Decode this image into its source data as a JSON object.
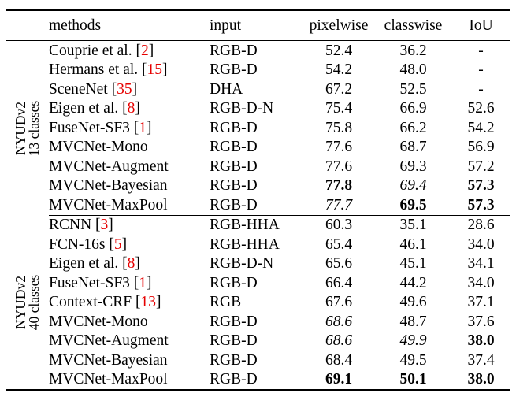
{
  "header": {
    "methods": "methods",
    "input": "input",
    "pixelwise": "pixelwise",
    "classwise": "classwise",
    "iou": "IoU"
  },
  "groups": [
    {
      "label": [
        "NYUDv2",
        "13 classes"
      ],
      "rows": [
        {
          "method": "Couprie et al.",
          "cite": "2",
          "input": "RGB-D",
          "cells": [
            {
              "v": "52.4"
            },
            {
              "v": "36.2"
            },
            {
              "v": "-"
            }
          ]
        },
        {
          "method": "Hermans et al.",
          "cite": "15",
          "input": "RGB-D",
          "cells": [
            {
              "v": "54.2"
            },
            {
              "v": "48.0"
            },
            {
              "v": "-"
            }
          ]
        },
        {
          "method": "SceneNet",
          "cite": "35",
          "input": "DHA",
          "cells": [
            {
              "v": "67.2"
            },
            {
              "v": "52.5"
            },
            {
              "v": "-"
            }
          ]
        },
        {
          "method": "Eigen et al.",
          "cite": "8",
          "input": "RGB-D-N",
          "cells": [
            {
              "v": "75.4"
            },
            {
              "v": "66.9"
            },
            {
              "v": "52.6"
            }
          ]
        },
        {
          "method": "FuseNet-SF3",
          "cite": "1",
          "input": "RGB-D",
          "cells": [
            {
              "v": "75.8"
            },
            {
              "v": "66.2"
            },
            {
              "v": "54.2"
            }
          ]
        },
        {
          "method": "MVCNet-Mono",
          "input": "RGB-D",
          "cells": [
            {
              "v": "77.6"
            },
            {
              "v": "68.7"
            },
            {
              "v": "56.9"
            }
          ]
        },
        {
          "method": "MVCNet-Augment",
          "input": "RGB-D",
          "cells": [
            {
              "v": "77.6"
            },
            {
              "v": "69.3"
            },
            {
              "v": "57.2"
            }
          ]
        },
        {
          "method": "MVCNet-Bayesian",
          "input": "RGB-D",
          "cells": [
            {
              "v": "77.8",
              "s": "bold"
            },
            {
              "v": "69.4",
              "s": "italic"
            },
            {
              "v": "57.3",
              "s": "bold"
            }
          ]
        },
        {
          "method": "MVCNet-MaxPool",
          "input": "RGB-D",
          "cells": [
            {
              "v": "77.7",
              "s": "italic"
            },
            {
              "v": "69.5",
              "s": "bold"
            },
            {
              "v": "57.3",
              "s": "bold"
            }
          ]
        }
      ]
    },
    {
      "label": [
        "NYUDv2",
        "40 classes"
      ],
      "rows": [
        {
          "method": "RCNN",
          "cite": "3",
          "input": "RGB-HHA",
          "cells": [
            {
              "v": "60.3"
            },
            {
              "v": "35.1"
            },
            {
              "v": "28.6"
            }
          ]
        },
        {
          "method": "FCN-16s",
          "cite": "5",
          "input": "RGB-HHA",
          "cells": [
            {
              "v": "65.4"
            },
            {
              "v": "46.1"
            },
            {
              "v": "34.0"
            }
          ]
        },
        {
          "method": "Eigen et al.",
          "cite": "8",
          "input": "RGB-D-N",
          "cells": [
            {
              "v": "65.6"
            },
            {
              "v": "45.1"
            },
            {
              "v": "34.1"
            }
          ]
        },
        {
          "method": "FuseNet-SF3",
          "cite": "1",
          "input": "RGB-D",
          "cells": [
            {
              "v": "66.4"
            },
            {
              "v": "44.2"
            },
            {
              "v": "34.0"
            }
          ]
        },
        {
          "method": "Context-CRF",
          "cite": "13",
          "input": "RGB",
          "cells": [
            {
              "v": "67.6"
            },
            {
              "v": "49.6"
            },
            {
              "v": "37.1"
            }
          ]
        },
        {
          "method": "MVCNet-Mono",
          "input": "RGB-D",
          "cells": [
            {
              "v": "68.6",
              "s": "italic"
            },
            {
              "v": "48.7"
            },
            {
              "v": "37.6"
            }
          ]
        },
        {
          "method": "MVCNet-Augment",
          "input": "RGB-D",
          "cells": [
            {
              "v": "68.6",
              "s": "italic"
            },
            {
              "v": "49.9",
              "s": "italic"
            },
            {
              "v": "38.0",
              "s": "bold"
            }
          ]
        },
        {
          "method": "MVCNet-Bayesian",
          "input": "RGB-D",
          "cells": [
            {
              "v": "68.4"
            },
            {
              "v": "49.5"
            },
            {
              "v": "37.4"
            }
          ]
        },
        {
          "method": "MVCNet-MaxPool",
          "input": "RGB-D",
          "cells": [
            {
              "v": "69.1",
              "s": "bold"
            },
            {
              "v": "50.1",
              "s": "bold"
            },
            {
              "v": "38.0",
              "s": "bold"
            }
          ]
        }
      ]
    }
  ],
  "colors": {
    "citation_red": "#e60000",
    "text_black": "#000000",
    "rule_black": "#000000",
    "background": "#ffffff"
  }
}
